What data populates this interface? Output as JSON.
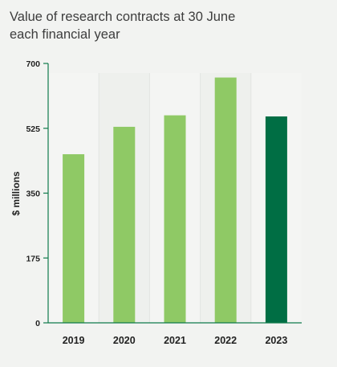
{
  "chart_data": {
    "type": "bar",
    "title": "Value of research contracts at 30 June each financial year",
    "ylabel": "$ millions",
    "xlabel": "",
    "categories": [
      "2019",
      "2020",
      "2021",
      "2022",
      "2023"
    ],
    "values": [
      455,
      529,
      560,
      662,
      557
    ],
    "ylim": [
      0,
      700
    ],
    "yticks": [
      "0",
      "175",
      "350",
      "525",
      "700"
    ],
    "grid": false,
    "bar_colors": [
      "#8fc965",
      "#8fc965",
      "#8fc965",
      "#8fc965",
      "#006e44"
    ],
    "axis_color": "#0f7a4b",
    "highlight_category": "2023"
  }
}
